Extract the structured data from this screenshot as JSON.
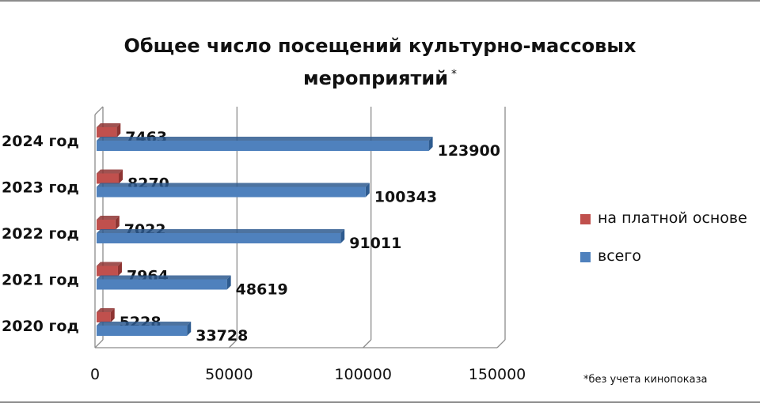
{
  "title_line1": "Общее число посещений культурно-массовых",
  "title_line2": "мероприятий",
  "title_mark": "*",
  "footnote": "*без учета кинопоказа",
  "colors": {
    "paid": "#c0504d",
    "paid_dark": "#8e3432",
    "total": "#4f81bd",
    "total_dark": "#2e5b8f",
    "grid": "#8c8c8c"
  },
  "chart_data": {
    "type": "bar",
    "orientation": "horizontal",
    "style": "3d",
    "categories": [
      "2024 год",
      "2023 год",
      "2022 год",
      "2021 год",
      "2020 год"
    ],
    "series": [
      {
        "name": "на платной основе",
        "values": [
          7463,
          8270,
          7022,
          7964,
          5228
        ]
      },
      {
        "name": "всего",
        "values": [
          123900,
          100343,
          91011,
          48619,
          33728
        ]
      }
    ],
    "xlim": [
      0,
      150000
    ],
    "xticks": [
      0,
      50000,
      100000,
      150000
    ],
    "xtick_labels": [
      "0",
      "50000",
      "100000",
      "150000"
    ],
    "grid": "vertical",
    "legend_position": "right"
  }
}
